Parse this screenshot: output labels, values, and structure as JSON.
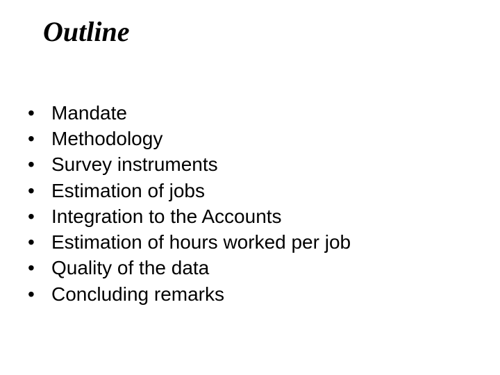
{
  "slide": {
    "title": "Outline",
    "title_font_family": "Comic Sans MS",
    "title_font_style": "bold italic",
    "title_font_size_pt": 40,
    "title_color": "#000000",
    "background_color": "#ffffff",
    "body_font_family": "Arial",
    "body_font_size_pt": 28,
    "body_color": "#000000",
    "bullet_glyph": "•",
    "items": [
      {
        "label": "Mandate"
      },
      {
        "label": "Methodology"
      },
      {
        "label": "Survey instruments"
      },
      {
        "label": "Estimation of jobs"
      },
      {
        "label": "Integration to the Accounts"
      },
      {
        "label": "Estimation of hours worked per job"
      },
      {
        "label": "Quality of the data"
      },
      {
        "label": "Concluding remarks"
      }
    ]
  }
}
